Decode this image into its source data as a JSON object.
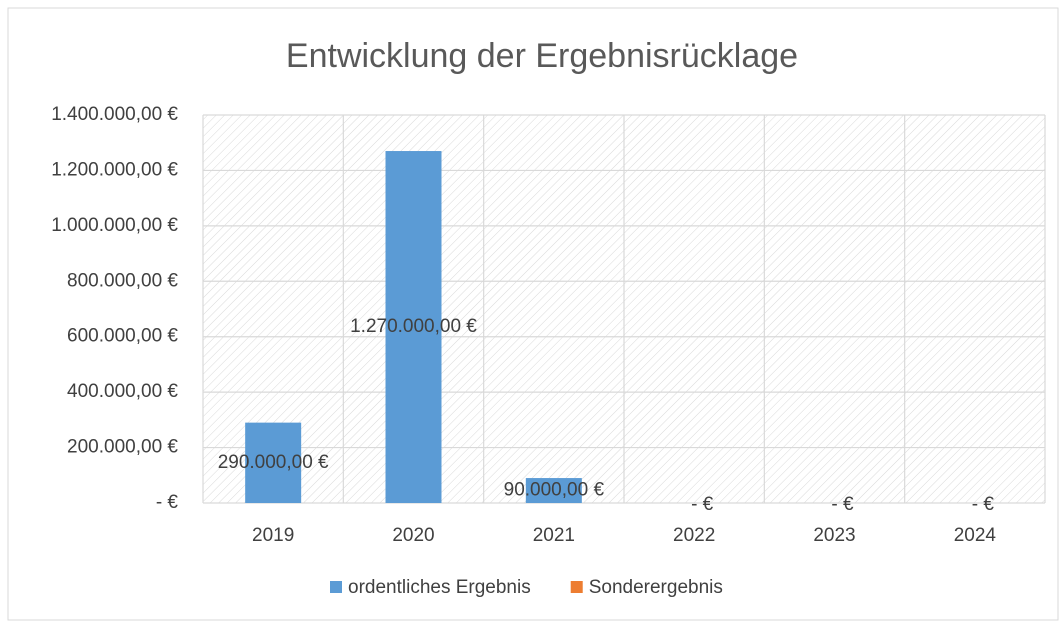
{
  "chart_data": {
    "type": "bar",
    "title": "Entwicklung der Ergebnisrücklage",
    "categories": [
      "2019",
      "2020",
      "2021",
      "2022",
      "2023",
      "2024"
    ],
    "series": [
      {
        "name": "ordentliches Ergebnis",
        "color": "#5b9bd5",
        "values": [
          290000,
          1270000,
          90000,
          0,
          0,
          0
        ],
        "value_labels": [
          "290.000,00 €",
          "1.270.000,00 €",
          "90.000,00 €",
          "-   €",
          "-   €",
          "-   €"
        ]
      },
      {
        "name": "Sonderergebnis",
        "color": "#ed7d31",
        "values": [
          null,
          null,
          null,
          null,
          null,
          null
        ]
      }
    ],
    "ylim": [
      0,
      1400000
    ],
    "yticks": [
      {
        "value": 0,
        "label": "-   €"
      },
      {
        "value": 200000,
        "label": "200.000,00 €"
      },
      {
        "value": 400000,
        "label": "400.000,00 €"
      },
      {
        "value": 600000,
        "label": "600.000,00 €"
      },
      {
        "value": 800000,
        "label": "800.000,00 €"
      },
      {
        "value": 1000000,
        "label": "1.000.000,00 €"
      },
      {
        "value": 1200000,
        "label": "1.200.000,00 €"
      },
      {
        "value": 1400000,
        "label": "1.400.000,00 €"
      }
    ],
    "grid": true,
    "legend": "bottom"
  }
}
